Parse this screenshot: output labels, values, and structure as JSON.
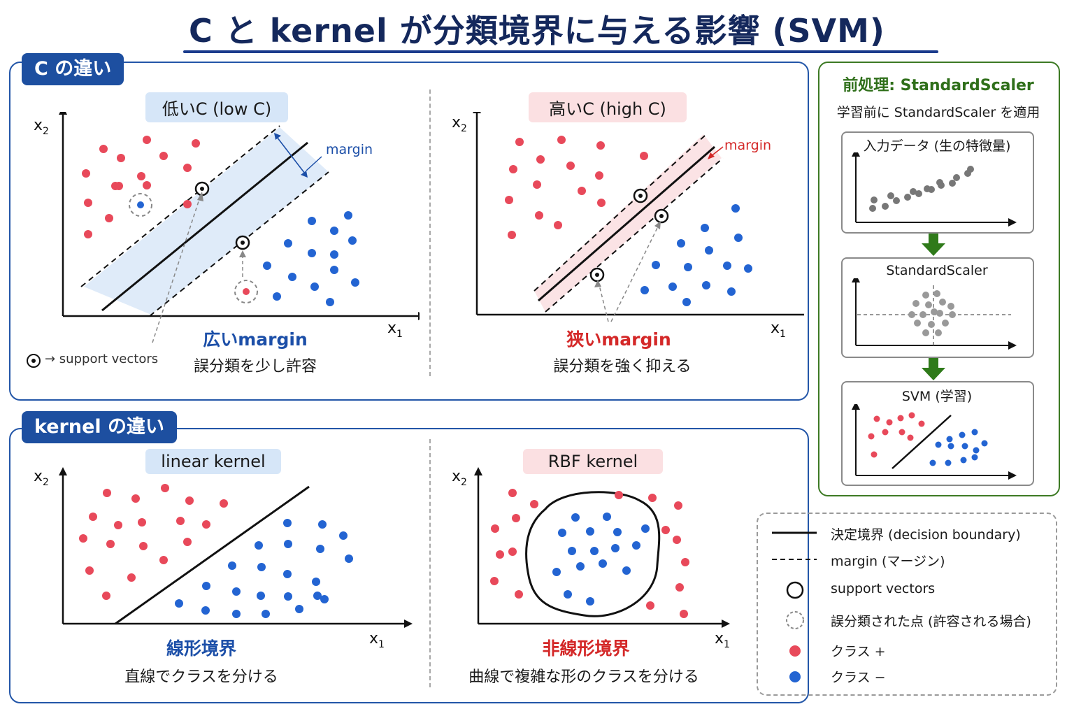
{
  "title": "C と kernel が分類境界に与える影響 (SVM)",
  "sections": {
    "c": {
      "tab": "C の違い",
      "low": {
        "pill": "低いC (low C)",
        "margin_label": "margin",
        "caption_big": "広いmargin",
        "caption": "誤分類を少し許容"
      },
      "high": {
        "pill": "高いC (high C)",
        "margin_label": "margin",
        "caption_big": "狭いmargin",
        "caption": "誤分類を強く抑える"
      },
      "sv_note": "→ support vectors"
    },
    "kernel": {
      "tab": "kernel の違い",
      "linear": {
        "pill": "linear kernel",
        "caption_big": "線形境界",
        "caption": "直線でクラスを分ける"
      },
      "rbf": {
        "pill": "RBF kernel",
        "caption_big": "非線形境界",
        "caption": "曲線で複雑な形のクラスを分ける"
      }
    }
  },
  "axes": {
    "x": "x",
    "x_sub": "1",
    "y": "x",
    "y_sub": "2"
  },
  "preprocess": {
    "title": "前処理: StandardScaler",
    "subtitle": "学習前に StandardScaler を適用",
    "step1": "入力データ (生の特徴量)",
    "step2": "StandardScaler",
    "step3": "SVM (学習)"
  },
  "legend": {
    "boundary": "決定境界 (decision boundary)",
    "margin": "margin (マージン)",
    "sv": "support vectors",
    "misclassified": "誤分類された点 (許容される場合)",
    "plus": "クラス +",
    "minus": "クラス −"
  },
  "colors": {
    "red_class": "#e8495a",
    "blue_class": "#2364d2",
    "accent_blue": "#1d4fa0",
    "accent_green": "#3d7a24"
  }
}
